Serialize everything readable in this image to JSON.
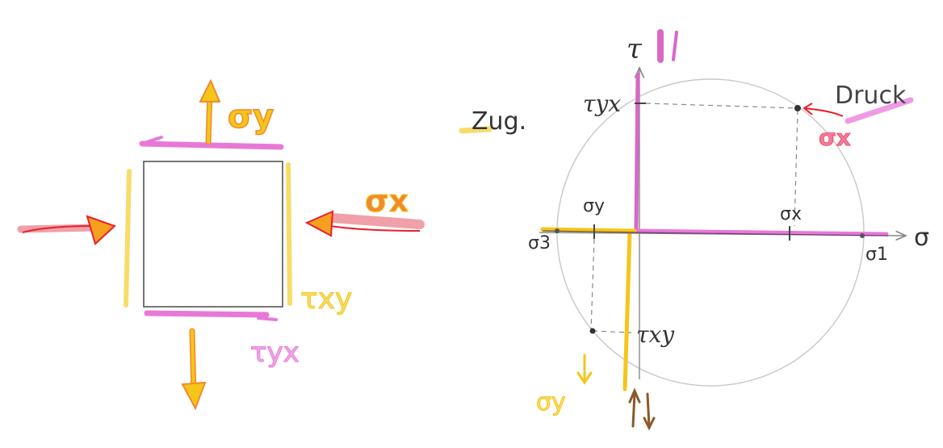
{
  "element_labels": {
    "sigma_y_top": "σy",
    "sigma_x_right": "σx",
    "tau_xy_right": "τxy",
    "tau_yx_bottom": "τyx"
  },
  "legend": {
    "tension": "Zug.",
    "compression": "Druck",
    "compression_sub": "σx"
  },
  "mohr": {
    "tau_axis": "τ",
    "sigma_axis": "σ",
    "tau_yx": "τyx",
    "tau_xy": "τxy",
    "sigma_x": "σx",
    "sigma_y": "σy",
    "sigma_1": "σ1",
    "sigma_3": "σ3",
    "sigma_y_lower": "σy"
  },
  "colors": {
    "tension": "#f5c518",
    "tension_light": "#f8dc6a",
    "compression_red": "#e8202a",
    "shear_pink": "#e878d8",
    "tau_purple": "#a0338a",
    "brown": "#8b5a2b",
    "orange": "#f08a30",
    "pen": "#333333",
    "circle": "#bdbdbd"
  }
}
